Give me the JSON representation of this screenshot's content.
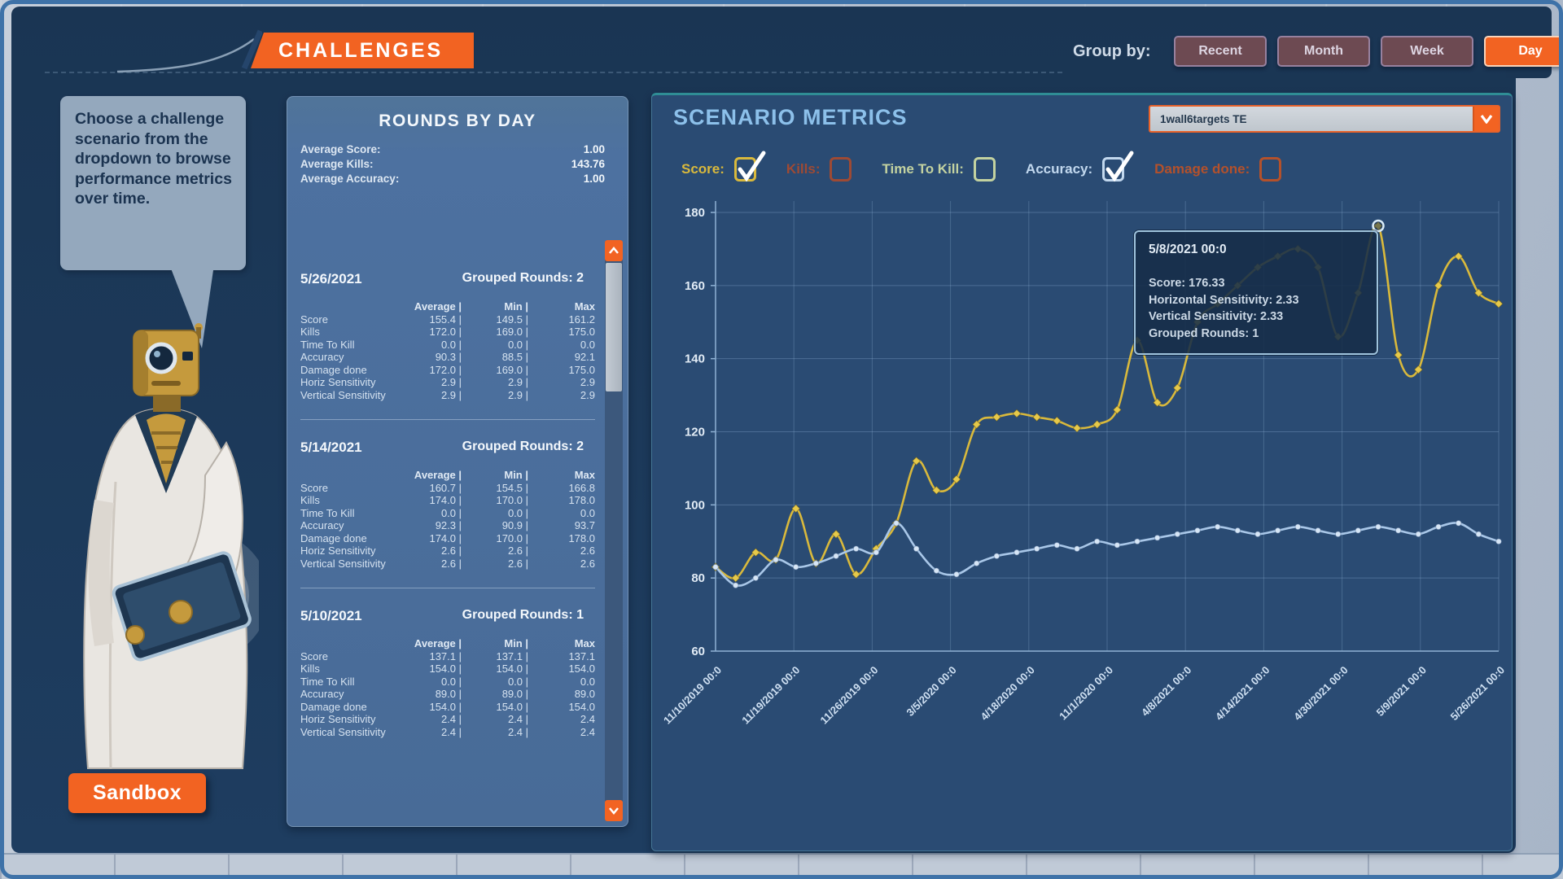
{
  "theme": {
    "accent_orange": "#f26322",
    "backdrop_navy": "#1c3756",
    "rounds_panel_blue": "#4d71a0",
    "metrics_panel_blue": "#2a4b73",
    "score_yellow": "#d9b93c",
    "accuracy_blue": "#a9c7e8"
  },
  "header": {
    "title": "CHALLENGES",
    "group_by_label": "Group by:",
    "group_buttons": [
      {
        "label": "Recent",
        "active": false
      },
      {
        "label": "Month",
        "active": false
      },
      {
        "label": "Week",
        "active": false
      },
      {
        "label": "Day",
        "active": true
      }
    ]
  },
  "assistant": {
    "speech": "Choose a challenge scenario from the dropdown to browse performance metrics over time."
  },
  "sandbox": {
    "label": "Sandbox"
  },
  "rounds_panel": {
    "title": "ROUNDS BY DAY",
    "averages": [
      {
        "label": "Average Score:",
        "value": "1.00"
      },
      {
        "label": "Average Kills:",
        "value": "143.76"
      },
      {
        "label": "Average Accuracy:",
        "value": "1.00"
      }
    ],
    "columns": [
      "Average",
      "Min",
      "Max"
    ],
    "column_separator": "|",
    "groups": [
      {
        "date": "5/26/2021",
        "grouped_rounds": "Grouped Rounds: 2",
        "rows": [
          [
            "Score",
            "155.4",
            "149.5",
            "161.2"
          ],
          [
            "Kills",
            "172.0",
            "169.0",
            "175.0"
          ],
          [
            "Time To Kill",
            "0.0",
            "0.0",
            "0.0"
          ],
          [
            "Accuracy",
            "90.3",
            "88.5",
            "92.1"
          ],
          [
            "Damage done",
            "172.0",
            "169.0",
            "175.0"
          ],
          [
            "Horiz Sensitivity",
            "2.9",
            "2.9",
            "2.9"
          ],
          [
            "Vertical Sensitivity",
            "2.9",
            "2.9",
            "2.9"
          ]
        ]
      },
      {
        "date": "5/14/2021",
        "grouped_rounds": "Grouped Rounds: 2",
        "rows": [
          [
            "Score",
            "160.7",
            "154.5",
            "166.8"
          ],
          [
            "Kills",
            "174.0",
            "170.0",
            "178.0"
          ],
          [
            "Time To Kill",
            "0.0",
            "0.0",
            "0.0"
          ],
          [
            "Accuracy",
            "92.3",
            "90.9",
            "93.7"
          ],
          [
            "Damage done",
            "174.0",
            "170.0",
            "178.0"
          ],
          [
            "Horiz Sensitivity",
            "2.6",
            "2.6",
            "2.6"
          ],
          [
            "Vertical Sensitivity",
            "2.6",
            "2.6",
            "2.6"
          ]
        ]
      },
      {
        "date": "5/10/2021",
        "grouped_rounds": "Grouped Rounds: 1",
        "rows": [
          [
            "Score",
            "137.1",
            "137.1",
            "137.1"
          ],
          [
            "Kills",
            "154.0",
            "154.0",
            "154.0"
          ],
          [
            "Time To Kill",
            "0.0",
            "0.0",
            "0.0"
          ],
          [
            "Accuracy",
            "89.0",
            "89.0",
            "89.0"
          ],
          [
            "Damage done",
            "154.0",
            "154.0",
            "154.0"
          ],
          [
            "Horiz Sensitivity",
            "2.4",
            "2.4",
            "2.4"
          ],
          [
            "Vertical Sensitivity",
            "2.4",
            "2.4",
            "2.4"
          ]
        ]
      }
    ]
  },
  "metrics_panel": {
    "title": "SCENARIO METRICS",
    "scenario_dropdown": {
      "value": "1wall6targets TE"
    },
    "toggles": [
      {
        "label": "Score:",
        "checked": true,
        "color": "#d9b93c"
      },
      {
        "label": "Kills:",
        "checked": false,
        "color": "#9e4a34"
      },
      {
        "label": "Time To Kill:",
        "checked": false,
        "color": "#c3d2a0"
      },
      {
        "label": "Accuracy:",
        "checked": true,
        "color": "#c2d8ee"
      },
      {
        "label": "Damage done:",
        "checked": false,
        "color": "#b4512b"
      }
    ],
    "tooltip": {
      "title": "5/8/2021 00:0",
      "lines": [
        "Score: 176.33",
        "Horizontal Sensitivity: 2.33",
        "Vertical Sensitivity: 2.33",
        "Grouped Rounds: 1"
      ]
    }
  },
  "chart_data": {
    "type": "line",
    "title": "SCENARIO METRICS",
    "xlabel": "",
    "ylabel": "",
    "ylim": [
      60,
      180
    ],
    "yticks": [
      60,
      80,
      100,
      120,
      140,
      160,
      180
    ],
    "grid": true,
    "legend_position": "top checkbox toggles",
    "x_tick_labels": [
      "11/10/2019 00:0",
      "11/19/2019 00:0",
      "11/26/2019 00:0",
      "3/5/2020 00:0",
      "4/18/2020 00:0",
      "11/1/2020 00:0",
      "4/8/2021 00:0",
      "4/14/2021 00:0",
      "4/30/2021 00:0",
      "5/9/2021 00:0",
      "5/26/2021 00:0"
    ],
    "series": [
      {
        "name": "Score",
        "color": "#d9b93c",
        "marker": "diamond",
        "marker_color": "#e6c94a",
        "values": [
          83,
          80,
          87,
          85,
          99,
          84,
          92,
          81,
          88,
          95,
          112,
          104,
          107,
          122,
          124,
          125,
          124,
          123,
          121,
          122,
          126,
          145,
          128,
          132,
          150,
          155,
          160,
          165,
          168,
          170,
          165,
          146,
          158,
          176.33,
          141,
          137,
          160,
          168,
          158,
          155
        ]
      },
      {
        "name": "Accuracy",
        "color": "#a9c7e8",
        "marker": "circle",
        "marker_color": "#d7e6f6",
        "values": [
          83,
          78,
          80,
          85,
          83,
          84,
          86,
          88,
          87,
          95,
          88,
          82,
          81,
          84,
          86,
          87,
          88,
          89,
          88,
          90,
          89,
          90,
          91,
          92,
          93,
          94,
          93,
          92,
          93,
          94,
          93,
          92,
          93,
          94,
          93,
          92,
          94,
          95,
          92,
          90
        ]
      }
    ],
    "highlight": {
      "series": "Score",
      "index": 33,
      "value": 176.33,
      "date": "5/8/2021 00:0"
    }
  }
}
